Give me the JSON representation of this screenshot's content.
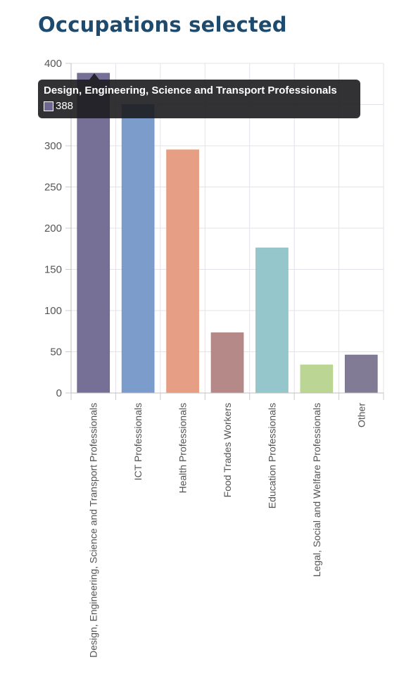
{
  "page": {
    "title": "Occupations selected"
  },
  "chart_data": {
    "type": "bar",
    "title": "",
    "xlabel": "",
    "ylabel": "",
    "ylim": [
      0,
      400
    ],
    "yticks": [
      0,
      50,
      100,
      150,
      200,
      250,
      300,
      350,
      400
    ],
    "grid": true,
    "legend": "none",
    "categories": [
      "Design, Engineering, Science and Transport Professionals",
      "ICT Professionals",
      "Health Professionals",
      "Food Trades Workers",
      "Education Professionals",
      "Legal, Social and Welfare Professionals",
      "Other"
    ],
    "values": [
      388,
      350,
      295,
      73,
      176,
      34,
      46
    ],
    "colors": [
      "#6f6890",
      "#7597c9",
      "#e59a7d",
      "#b08381",
      "#8ec3c8",
      "#b7d48e",
      "#7b7490"
    ]
  },
  "tooltip": {
    "title": "Design, Engineering, Science and Transport Professionals",
    "value": "388",
    "swatch_color": "#6f6890"
  }
}
